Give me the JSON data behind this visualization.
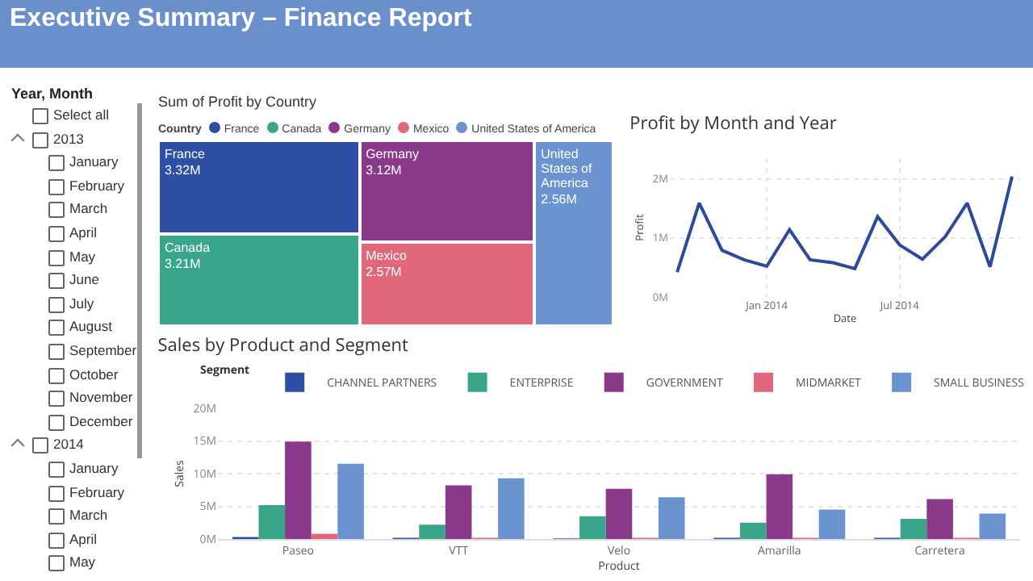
{
  "chart_data": [
    {
      "type": "other",
      "title": "Executive Summary – Finance Report"
    },
    {
      "type": "other",
      "title": "Year, Month",
      "annotations": [
        "Select all",
        "2013",
        "January",
        "February",
        "March",
        "April",
        "May",
        "June",
        "July",
        "August",
        "September",
        "October",
        "November",
        "December",
        "2014",
        "January",
        "February",
        "March",
        "April",
        "May"
      ]
    },
    {
      "type": "other",
      "title": "Sum of Profit by Country",
      "legend_title": "Country",
      "categories": [
        "France",
        "Canada",
        "Germany",
        "Mexico",
        "United States of America"
      ],
      "values": [
        3.32,
        3.21,
        3.12,
        2.57,
        2.56
      ],
      "value_labels": [
        "3.32M",
        "3.21M",
        "3.12M",
        "2.57M",
        "2.56M"
      ],
      "colors": [
        "#2e4fa3",
        "#39a58a",
        "#8b3a8b",
        "#e0687a",
        "#6a93cf"
      ]
    },
    {
      "type": "line",
      "title": "Profit by Month and Year",
      "xlabel": "Date",
      "ylabel": "Profit",
      "grid": true,
      "marker": "none",
      "line_style": "solid",
      "x": [
        "2013-09",
        "2013-10",
        "2013-11",
        "2013-12",
        "2014-01",
        "2014-02",
        "2014-03",
        "2014-04",
        "2014-05",
        "2014-06",
        "2014-07",
        "2014-08",
        "2014-09",
        "2014-10",
        "2014-11",
        "2014-12"
      ],
      "series": [
        {
          "color": "#2b4a9b",
          "values": [
            0.42,
            1.59,
            0.79,
            0.63,
            0.52,
            1.14,
            0.63,
            0.58,
            0.48,
            1.36,
            0.88,
            0.64,
            1.02,
            1.59,
            0.51,
            2.04
          ]
        }
      ],
      "xlim": [
        "2013-08-22",
        "2014-12-12"
      ],
      "xticks": [
        {
          "value": "2014-01",
          "label": "Jan 2014"
        },
        {
          "value": "2014-07",
          "label": "Jul 2014"
        }
      ],
      "ylim": [
        0,
        2.35
      ],
      "yticks": [
        {
          "value": 0,
          "label": "0M"
        },
        {
          "value": 1,
          "label": "1M"
        },
        {
          "value": 2,
          "label": "2M"
        }
      ]
    },
    {
      "type": "bar",
      "title": "Sales by Product and Segment",
      "xlabel": "Product",
      "ylabel": "Sales",
      "legend_title": "Segment",
      "legend": "top left",
      "grid": "y",
      "categories": [
        "Paseo",
        "VTT",
        "Velo",
        "Amarilla",
        "Carretera"
      ],
      "series": [
        {
          "name": "CHANNEL PARTNERS",
          "color": "#2e4fa3",
          "values": [
            0.3,
            0.2,
            0.1,
            0.2,
            0.2
          ]
        },
        {
          "name": "ENTERPRISE",
          "color": "#39a58a",
          "values": [
            5.2,
            2.2,
            3.5,
            2.5,
            3.1
          ]
        },
        {
          "name": "GOVERNMENT",
          "color": "#8b3a8b",
          "values": [
            14.9,
            8.2,
            7.7,
            9.9,
            6.1
          ]
        },
        {
          "name": "MIDMARKET",
          "color": "#e0687a",
          "values": [
            0.8,
            0.2,
            0.2,
            0.2,
            0.2
          ]
        },
        {
          "name": "SMALL BUSINESS",
          "color": "#6a93cf",
          "values": [
            11.5,
            9.3,
            6.4,
            4.5,
            3.9
          ]
        }
      ],
      "ylim": [
        0,
        20
      ],
      "yticks": [
        {
          "value": 0,
          "label": "0M"
        },
        {
          "value": 5,
          "label": "5M"
        },
        {
          "value": 10,
          "label": "10M"
        },
        {
          "value": 15,
          "label": "15M"
        },
        {
          "value": 20,
          "label": "20M"
        }
      ]
    }
  ]
}
